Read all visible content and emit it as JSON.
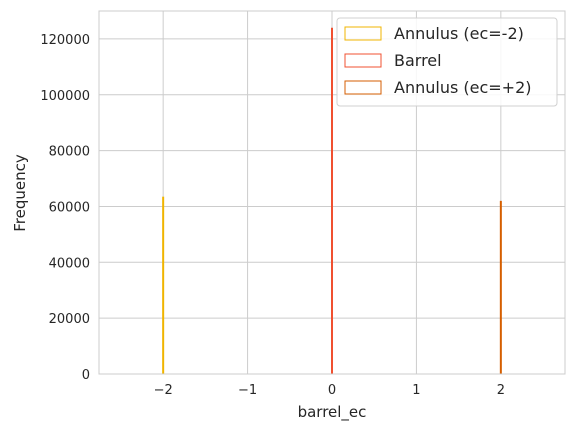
{
  "chart_data": {
    "type": "bar",
    "xlabel": "barrel_ec",
    "ylabel": "Frequency",
    "xlim": [
      -2.76,
      2.76
    ],
    "ylim": [
      0,
      130000
    ],
    "xticks": [
      -2,
      -1,
      0,
      1,
      2
    ],
    "xtick_labels": [
      "−2",
      "−1",
      "0",
      "1",
      "2"
    ],
    "yticks": [
      0,
      20000,
      40000,
      60000,
      80000,
      100000,
      120000
    ],
    "ytick_labels": [
      "0",
      "20000",
      "40000",
      "60000",
      "80000",
      "100000",
      "120000"
    ],
    "grid": true,
    "legend_position": "top-right",
    "series": [
      {
        "name": "Annulus (ec=-2)",
        "x": -2,
        "value": 63500,
        "color": "#f0b400"
      },
      {
        "name": "Barrel",
        "x": 0,
        "value": 124000,
        "color": "#f05030"
      },
      {
        "name": "Annulus (ec=+2)",
        "x": 2,
        "value": 62000,
        "color": "#d55e00"
      }
    ]
  }
}
